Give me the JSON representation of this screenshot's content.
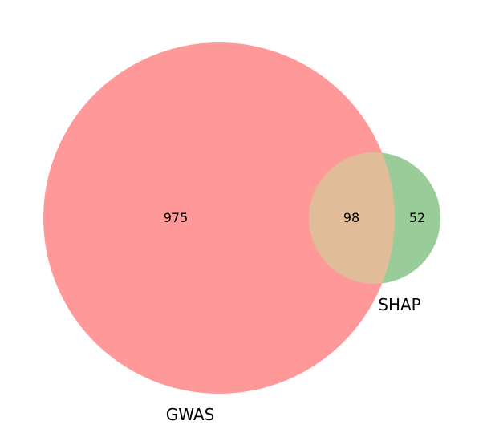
{
  "diagram": {
    "type": "venn2",
    "sets": [
      {
        "name": "GWAS",
        "color": "#ff9999"
      },
      {
        "name": "SHAP",
        "color": "#99cc99"
      }
    ],
    "overlap_color": "#e0bd98",
    "counts": {
      "gwas_only": "975",
      "both": "98",
      "shap_only": "52"
    }
  }
}
